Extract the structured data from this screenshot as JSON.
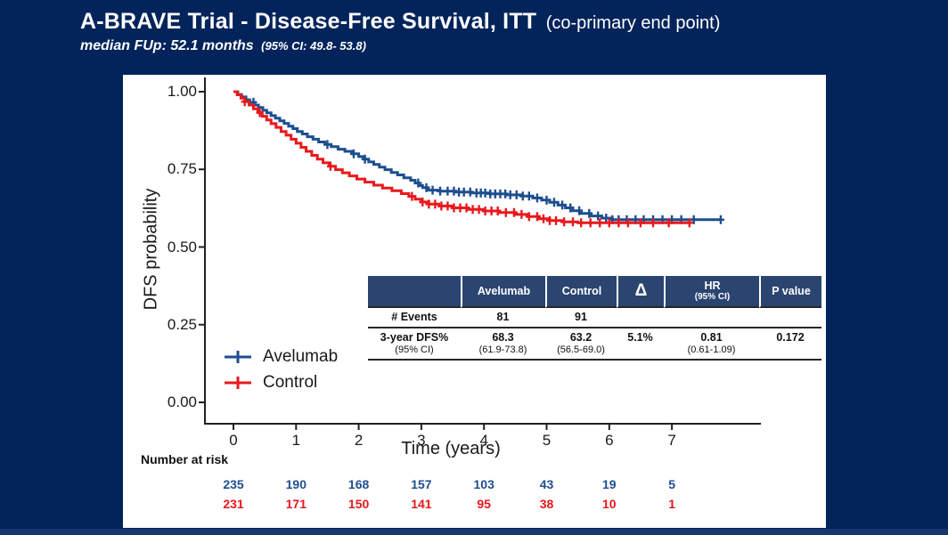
{
  "header": {
    "title": "A-BRAVE Trial - Disease-Free Survival, ITT",
    "title_suffix": "(co-primary end point)",
    "subtitle": "median FUp: 52.1 months",
    "subtitle_ci": "(95% CI: 49.8- 53.8)"
  },
  "colors": {
    "background": "#03245A",
    "panel": "#FFFFFF",
    "avelumab": "#1D4E8F",
    "control": "#E8191D",
    "table_header_bg": "#2B4571",
    "axis": "#231F20"
  },
  "chart_data": {
    "type": "line",
    "subtype": "kaplan-meier-step",
    "title": "",
    "xlabel": "Time (years)",
    "ylabel": "DFS probability",
    "xlim": [
      0,
      8.4
    ],
    "ylim": [
      0,
      1.0
    ],
    "x_ticks": [
      0,
      1,
      2,
      3,
      4,
      5,
      6,
      7
    ],
    "y_ticks": [
      "1.00",
      "0.75",
      "0.50",
      "0.25",
      "0.00"
    ],
    "y_tick_values": [
      1.0,
      0.75,
      0.5,
      0.25,
      0.0
    ],
    "grid": false,
    "legend_position": "inside-bottom-left",
    "censor_marker": "plus",
    "series": [
      {
        "name": "Avelumab",
        "color": "#1D4E8F",
        "points": [
          [
            0,
            1.0
          ],
          [
            0.07,
            0.991
          ],
          [
            0.13,
            0.983
          ],
          [
            0.2,
            0.974
          ],
          [
            0.26,
            0.966
          ],
          [
            0.33,
            0.957
          ],
          [
            0.4,
            0.949
          ],
          [
            0.47,
            0.94
          ],
          [
            0.53,
            0.932
          ],
          [
            0.6,
            0.923
          ],
          [
            0.67,
            0.915
          ],
          [
            0.74,
            0.906
          ],
          [
            0.81,
            0.898
          ],
          [
            0.88,
            0.889
          ],
          [
            0.95,
            0.881
          ],
          [
            1.02,
            0.872
          ],
          [
            1.1,
            0.864
          ],
          [
            1.18,
            0.855
          ],
          [
            1.27,
            0.847
          ],
          [
            1.36,
            0.838
          ],
          [
            1.46,
            0.83
          ],
          [
            1.56,
            0.823
          ],
          [
            1.67,
            0.815
          ],
          [
            1.78,
            0.808
          ],
          [
            1.9,
            0.8
          ],
          [
            2.0,
            0.791
          ],
          [
            2.08,
            0.783
          ],
          [
            2.16,
            0.774
          ],
          [
            2.24,
            0.766
          ],
          [
            2.33,
            0.757
          ],
          [
            2.42,
            0.749
          ],
          [
            2.52,
            0.74
          ],
          [
            2.62,
            0.732
          ],
          [
            2.72,
            0.723
          ],
          [
            2.83,
            0.715
          ],
          [
            2.9,
            0.706
          ],
          [
            2.96,
            0.698
          ],
          [
            3.02,
            0.691
          ],
          [
            3.1,
            0.683
          ],
          [
            3.3,
            0.68
          ],
          [
            3.55,
            0.677
          ],
          [
            3.8,
            0.674
          ],
          [
            4.1,
            0.671
          ],
          [
            4.35,
            0.668
          ],
          [
            4.6,
            0.664
          ],
          [
            4.78,
            0.658
          ],
          [
            4.92,
            0.651
          ],
          [
            5.05,
            0.644
          ],
          [
            5.18,
            0.635
          ],
          [
            5.3,
            0.626
          ],
          [
            5.42,
            0.617
          ],
          [
            5.55,
            0.608
          ],
          [
            5.7,
            0.6
          ],
          [
            5.88,
            0.593
          ],
          [
            6.05,
            0.588
          ],
          [
            7.78,
            0.588
          ]
        ],
        "censor_times": [
          0.32,
          1.5,
          1.92,
          2.1,
          2.95,
          3.08,
          3.18,
          3.3,
          3.42,
          3.52,
          3.6,
          3.68,
          3.78,
          3.88,
          3.95,
          4.02,
          4.1,
          4.18,
          4.26,
          4.34,
          4.42,
          4.52,
          4.62,
          4.72,
          4.85,
          5.0,
          5.12,
          5.25,
          5.38,
          5.52,
          5.68,
          5.82,
          5.95,
          6.05,
          6.15,
          6.28,
          6.42,
          6.55,
          6.7,
          6.85,
          7.0,
          7.15,
          7.35,
          7.78
        ]
      },
      {
        "name": "Control",
        "color": "#E8191D",
        "points": [
          [
            0,
            1.0
          ],
          [
            0.06,
            0.99
          ],
          [
            0.12,
            0.979
          ],
          [
            0.18,
            0.968
          ],
          [
            0.25,
            0.957
          ],
          [
            0.32,
            0.945
          ],
          [
            0.39,
            0.933
          ],
          [
            0.46,
            0.921
          ],
          [
            0.53,
            0.909
          ],
          [
            0.6,
            0.897
          ],
          [
            0.68,
            0.885
          ],
          [
            0.76,
            0.872
          ],
          [
            0.84,
            0.86
          ],
          [
            0.92,
            0.847
          ],
          [
            1.0,
            0.834
          ],
          [
            1.08,
            0.821
          ],
          [
            1.16,
            0.808
          ],
          [
            1.25,
            0.795
          ],
          [
            1.34,
            0.783
          ],
          [
            1.43,
            0.771
          ],
          [
            1.53,
            0.76
          ],
          [
            1.63,
            0.749
          ],
          [
            1.74,
            0.739
          ],
          [
            1.85,
            0.729
          ],
          [
            1.97,
            0.719
          ],
          [
            2.1,
            0.709
          ],
          [
            2.24,
            0.699
          ],
          [
            2.38,
            0.69
          ],
          [
            2.53,
            0.681
          ],
          [
            2.68,
            0.672
          ],
          [
            2.8,
            0.663
          ],
          [
            2.9,
            0.654
          ],
          [
            3.0,
            0.645
          ],
          [
            3.12,
            0.638
          ],
          [
            3.28,
            0.632
          ],
          [
            3.5,
            0.626
          ],
          [
            3.75,
            0.621
          ],
          [
            4.0,
            0.616
          ],
          [
            4.25,
            0.611
          ],
          [
            4.5,
            0.605
          ],
          [
            4.7,
            0.598
          ],
          [
            4.88,
            0.591
          ],
          [
            5.05,
            0.585
          ],
          [
            5.25,
            0.581
          ],
          [
            5.5,
            0.578
          ],
          [
            7.3,
            0.578
          ]
        ],
        "censor_times": [
          0.18,
          0.42,
          1.55,
          2.85,
          3.02,
          3.12,
          3.22,
          3.32,
          3.42,
          3.52,
          3.62,
          3.72,
          3.82,
          3.92,
          4.02,
          4.12,
          4.22,
          4.35,
          4.48,
          4.6,
          4.72,
          4.85,
          4.95,
          5.05,
          5.15,
          5.28,
          5.42,
          5.55,
          5.7,
          5.85,
          6.0,
          6.15,
          6.3,
          6.5,
          6.7,
          6.95,
          7.28
        ]
      }
    ]
  },
  "summary_table": {
    "header": {
      "col0": "",
      "avelumab": "Avelumab",
      "control": "Control",
      "delta": "Δ",
      "hr_line1": "HR",
      "hr_line2": "(95% CI)",
      "pvalue": "P value"
    },
    "row_events": {
      "label": "# Events",
      "avelumab": "81",
      "control": "91",
      "delta": "",
      "hr": "",
      "pvalue": ""
    },
    "row_dfs": {
      "label1": "3-year DFS%",
      "label2": "(95% CI)",
      "avelumab1": "68.3",
      "avelumab2": "(61.9-73.8)",
      "control1": "63.2",
      "control2": "(56.5-69.0)",
      "delta": "5.1%",
      "hr1": "0.81",
      "hr2": "(0.61-1.09)",
      "pvalue": "0.172"
    }
  },
  "risk_table": {
    "title": "Number at risk",
    "times": [
      0,
      1,
      2,
      3,
      4,
      5,
      6,
      7
    ],
    "rows": [
      {
        "name": "Avelumab",
        "color": "#1D4E8F",
        "values": [
          "235",
          "190",
          "168",
          "157",
          "103",
          "43",
          "19",
          "5"
        ]
      },
      {
        "name": "Control",
        "color": "#E8191D",
        "values": [
          "231",
          "171",
          "150",
          "141",
          "95",
          "38",
          "10",
          "1"
        ]
      }
    ]
  }
}
